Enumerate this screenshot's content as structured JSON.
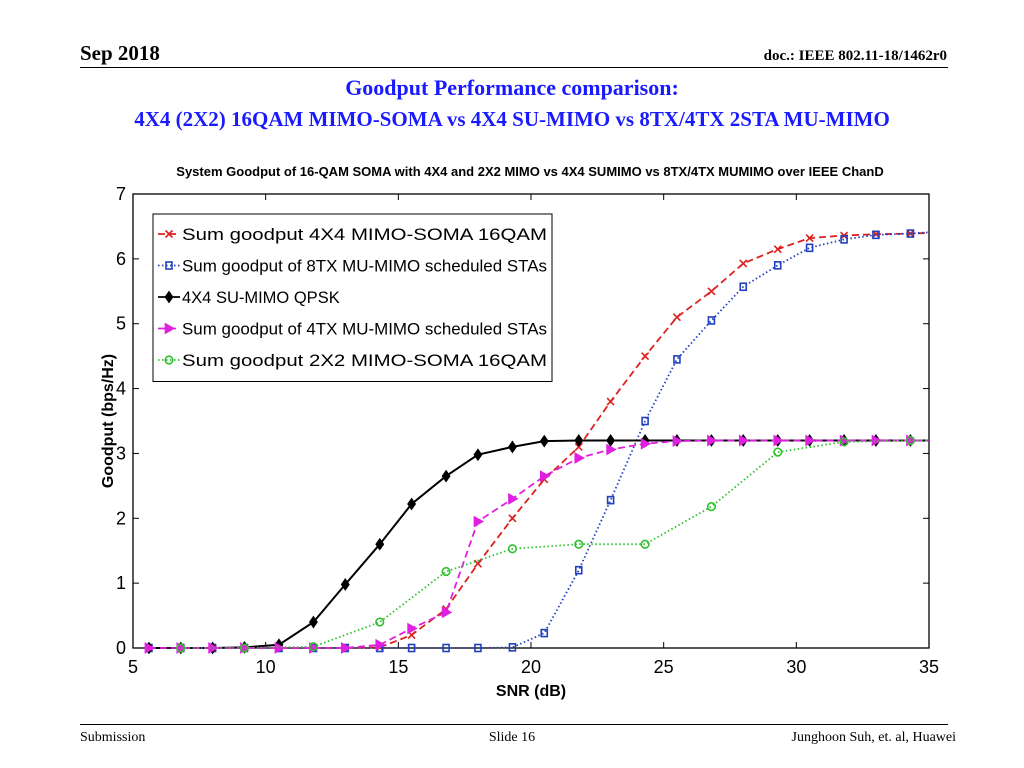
{
  "slide": {
    "date": "Sep 2018",
    "doc": "doc.: IEEE 802.11-18/1462r0",
    "title_line1": "Goodput Performance comparison:",
    "title_line2": "4X4 (2X2) 16QAM MIMO-SOMA vs 4X4 SU-MIMO vs 8TX/4TX 2STA MU-MIMO",
    "footer_left": "Submission",
    "footer_center": "Slide 16",
    "footer_right": "Junghoon Suh, et. al, Huawei"
  },
  "chart_data": {
    "type": "line",
    "title": "System Goodput of 16-QAM SOMA with 4X4 and 2X2 MIMO vs 4X4 SUMIMO vs 8TX/4TX MUMIMO over IEEE ChanD",
    "xlabel": "SNR (dB)",
    "ylabel": "Goodput (bps/Hz)",
    "xlim": [
      5,
      35
    ],
    "ylim": [
      0,
      7
    ],
    "xticks": [
      5,
      10,
      15,
      20,
      25,
      30,
      35
    ],
    "yticks": [
      0,
      1,
      2,
      3,
      4,
      5,
      6,
      7
    ],
    "grid": false,
    "legend_position": "top-left",
    "series": [
      {
        "name": "Sum goodput 4X4 MIMO-SOMA 16QAM",
        "color": "#dd2020",
        "dash": "dashed",
        "marker": "x",
        "x": [
          5.6,
          6.8,
          8.0,
          9.2,
          10.5,
          11.8,
          13.0,
          14.3,
          15.5,
          16.8,
          18.0,
          19.3,
          20.5,
          21.8,
          23.0,
          24.3,
          25.5,
          26.8,
          28.0,
          29.3,
          30.5,
          31.8,
          33.0,
          34.3,
          35.0
        ],
        "y": [
          0,
          0,
          0,
          0,
          0,
          0,
          0,
          0.01,
          0.2,
          0.6,
          1.3,
          2.0,
          2.6,
          3.1,
          3.8,
          4.5,
          5.1,
          5.5,
          5.93,
          6.15,
          6.32,
          6.36,
          6.38,
          6.39,
          6.4
        ]
      },
      {
        "name": "Sum goodput of 8TX MU-MIMO scheduled STAs",
        "color": "#2040c0",
        "dash": "dotted",
        "marker": "square",
        "x": [
          5.6,
          6.8,
          8.0,
          9.2,
          10.5,
          11.8,
          13.0,
          14.3,
          15.5,
          16.8,
          18.0,
          19.3,
          20.5,
          21.8,
          23.0,
          24.3,
          25.5,
          26.8,
          28.0,
          29.3,
          30.5,
          31.8,
          33.0,
          34.3,
          35.0
        ],
        "y": [
          0,
          0,
          0,
          0,
          0,
          0,
          0,
          0,
          0,
          0,
          0,
          0.01,
          0.23,
          1.2,
          2.28,
          3.5,
          4.45,
          5.05,
          5.57,
          5.9,
          6.17,
          6.3,
          6.37,
          6.39,
          6.41
        ]
      },
      {
        "name": "4X4 SU-MIMO QPSK",
        "color": "#000000",
        "dash": "solid",
        "marker": "diamond",
        "x": [
          5.6,
          6.8,
          8.0,
          9.2,
          10.5,
          11.8,
          13.0,
          14.3,
          15.5,
          16.8,
          18.0,
          19.3,
          20.5,
          21.8,
          23.0,
          24.3,
          25.5,
          26.8,
          28.0,
          29.3,
          30.5,
          31.8,
          33.0,
          34.3,
          35.0
        ],
        "y": [
          0,
          0,
          0,
          0.01,
          0.05,
          0.4,
          0.98,
          1.6,
          2.22,
          2.65,
          2.98,
          3.1,
          3.19,
          3.2,
          3.2,
          3.2,
          3.2,
          3.2,
          3.2,
          3.2,
          3.2,
          3.2,
          3.2,
          3.2,
          3.2
        ]
      },
      {
        "name": "Sum goodput of 4TX MU-MIMO scheduled STAs",
        "color": "#e020e0",
        "dash": "dashed",
        "marker": "triangle-right",
        "x": [
          5.6,
          6.8,
          8.0,
          9.2,
          10.5,
          11.8,
          13.0,
          14.3,
          15.5,
          16.8,
          18.0,
          19.3,
          20.5,
          21.8,
          23.0,
          24.3,
          25.5,
          26.8,
          28.0,
          29.3,
          30.5,
          31.8,
          33.0,
          34.3,
          35.0
        ],
        "y": [
          0,
          0,
          0,
          0,
          0,
          0,
          0,
          0.05,
          0.3,
          0.55,
          1.95,
          2.3,
          2.65,
          2.93,
          3.06,
          3.15,
          3.19,
          3.2,
          3.2,
          3.2,
          3.2,
          3.2,
          3.2,
          3.2,
          3.2
        ]
      },
      {
        "name": "Sum goodput 2X2 MIMO-SOMA 16QAM",
        "color": "#30c030",
        "dash": "dotted",
        "marker": "circle",
        "x": [
          6.8,
          9.2,
          11.8,
          14.3,
          16.8,
          19.3,
          21.8,
          24.3,
          26.8,
          29.3,
          31.8,
          34.3,
          35.0
        ],
        "y": [
          0,
          0,
          0.02,
          0.4,
          1.18,
          1.53,
          1.6,
          1.6,
          2.18,
          3.02,
          3.18,
          3.2,
          3.2
        ]
      }
    ]
  }
}
